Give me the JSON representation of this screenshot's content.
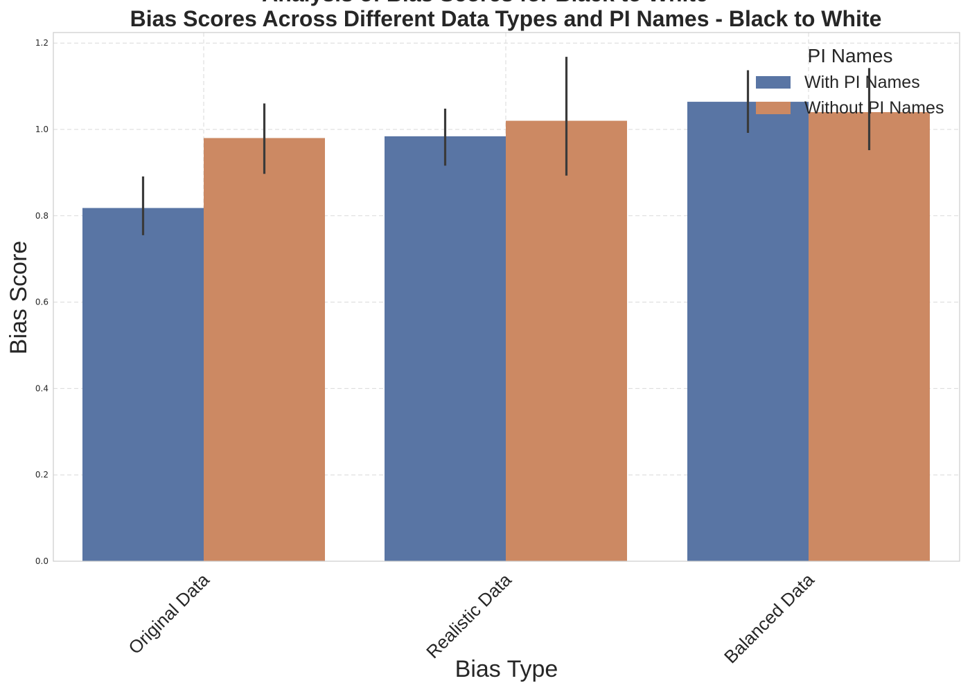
{
  "chart_data": {
    "type": "bar",
    "title": "Analysis of Bias Scores for Black to White",
    "subtitle": "Bias Scores Across Different Data Types and PI Names - Black to White",
    "xlabel": "Bias Type",
    "ylabel": "Bias Score",
    "categories": [
      "Original Data",
      "Realistic Data",
      "Balanced Data"
    ],
    "ylim": [
      0,
      1.225
    ],
    "yticks": [
      "0.0",
      "0.2",
      "0.4",
      "0.6",
      "0.8",
      "1.0",
      "1.2"
    ],
    "grid": true,
    "legend": {
      "title": "PI Names",
      "placement": "top-right"
    },
    "series": [
      {
        "name": "With PI Names",
        "color": "#5975a4",
        "values": [
          0.818,
          0.984,
          1.064
        ],
        "error_low": [
          0.755,
          0.916,
          0.992
        ],
        "error_high": [
          0.891,
          1.048,
          1.137
        ]
      },
      {
        "name": "Without PI Names",
        "color": "#cc8963",
        "values": [
          0.98,
          1.02,
          1.04
        ],
        "error_low": [
          0.897,
          0.893,
          0.952
        ],
        "error_high": [
          1.06,
          1.168,
          1.142
        ]
      }
    ]
  }
}
